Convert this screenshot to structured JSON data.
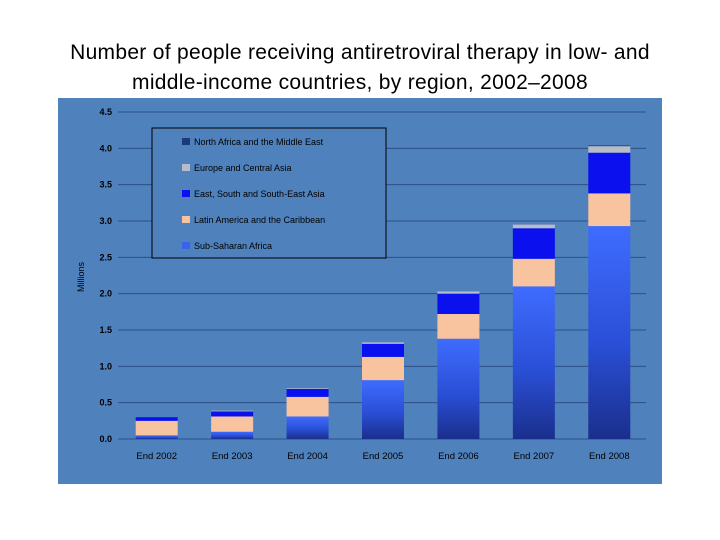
{
  "title": {
    "line1": "Number of people receiving antiretroviral therapy in low- and",
    "line2": "middle-income countries, by region, 2002–2008"
  },
  "chart_data": {
    "type": "bar",
    "stacked": true,
    "categories": [
      "End 2002",
      "End 2003",
      "End 2004",
      "End 2005",
      "End 2006",
      "End 2007",
      "End 2008"
    ],
    "ylabel": "Millions",
    "ylim": [
      0,
      4.5
    ],
    "yticks": [
      "0.0",
      "0.5",
      "1.0",
      "1.5",
      "2.0",
      "2.5",
      "3.0",
      "3.5",
      "4.0",
      "4.5"
    ],
    "grid": true,
    "legend_position": "top-left",
    "series": [
      {
        "name": "Sub-Saharan Africa",
        "color": "#3a62f0",
        "values": [
          0.05,
          0.1,
          0.31,
          0.81,
          1.38,
          2.1,
          2.93
        ]
      },
      {
        "name": "Latin America and the Caribbean",
        "color": "#f8c4a0",
        "values": [
          0.2,
          0.21,
          0.27,
          0.32,
          0.34,
          0.38,
          0.45
        ]
      },
      {
        "name": "East, South and South-East Asia",
        "color": "#0a10ee",
        "values": [
          0.05,
          0.07,
          0.11,
          0.18,
          0.28,
          0.42,
          0.56
        ]
      },
      {
        "name": "Europe and Central Asia",
        "color": "#b8bcc8",
        "values": [
          0.0,
          0.01,
          0.01,
          0.02,
          0.03,
          0.05,
          0.09
        ]
      },
      {
        "name": "North Africa and the Middle East",
        "color": "#1a3a7a",
        "values": [
          0.0,
          0.0,
          0.0,
          0.0,
          0.0,
          0.0,
          0.01
        ]
      }
    ],
    "legend_order": [
      4,
      3,
      2,
      1,
      0
    ],
    "colors": {
      "plot_background": "#4f81bd",
      "gridline": "#2d4f86",
      "legend_background": "#4f81bd"
    }
  }
}
